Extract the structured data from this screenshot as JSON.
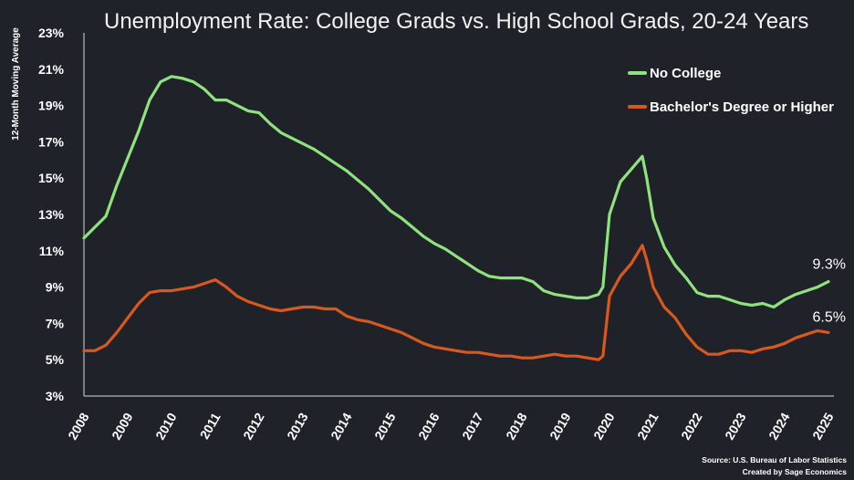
{
  "chart_data": {
    "type": "line",
    "title": "Unemployment Rate: College Grads vs. High School Grads, 20-24 Years",
    "ylabel": "12-Month Moving Average",
    "xlabel": "",
    "ylim": [
      3,
      23
    ],
    "xlim": [
      2008,
      2025
    ],
    "y_ticks": [
      "3%",
      "5%",
      "7%",
      "9%",
      "11%",
      "13%",
      "15%",
      "17%",
      "19%",
      "21%",
      "23%"
    ],
    "x_ticks": [
      "2008",
      "2009",
      "2010",
      "2011",
      "2012",
      "2013",
      "2014",
      "2015",
      "2016",
      "2017",
      "2018",
      "2019",
      "2020",
      "2021",
      "2022",
      "2023",
      "2024",
      "2025"
    ],
    "legend_position": "top-right",
    "series": [
      {
        "name": "No College",
        "color": "#8fe27d",
        "end_label": "9.3%",
        "x": [
          2008.0,
          2008.25,
          2008.5,
          2008.75,
          2009.0,
          2009.25,
          2009.5,
          2009.75,
          2010.0,
          2010.25,
          2010.5,
          2010.75,
          2011.0,
          2011.25,
          2011.5,
          2011.75,
          2012.0,
          2012.25,
          2012.5,
          2012.75,
          2013.0,
          2013.25,
          2013.5,
          2013.75,
          2014.0,
          2014.25,
          2014.5,
          2014.75,
          2015.0,
          2015.25,
          2015.5,
          2015.75,
          2016.0,
          2016.25,
          2016.5,
          2016.75,
          2017.0,
          2017.25,
          2017.5,
          2017.75,
          2018.0,
          2018.25,
          2018.5,
          2018.75,
          2019.0,
          2019.25,
          2019.5,
          2019.75,
          2019.85,
          2020.0,
          2020.25,
          2020.5,
          2020.75,
          2020.85,
          2021.0,
          2021.25,
          2021.5,
          2021.75,
          2022.0,
          2022.25,
          2022.5,
          2022.75,
          2023.0,
          2023.25,
          2023.5,
          2023.75,
          2024.0,
          2024.25,
          2024.5,
          2024.75,
          2025.0
        ],
        "values": [
          11.7,
          12.3,
          12.9,
          14.6,
          16.1,
          17.6,
          19.3,
          20.3,
          20.6,
          20.5,
          20.3,
          19.9,
          19.3,
          19.3,
          19.0,
          18.7,
          18.6,
          18.0,
          17.5,
          17.2,
          16.9,
          16.6,
          16.2,
          15.8,
          15.4,
          14.9,
          14.4,
          13.8,
          13.2,
          12.8,
          12.3,
          11.8,
          11.4,
          11.1,
          10.7,
          10.3,
          9.9,
          9.6,
          9.5,
          9.5,
          9.5,
          9.3,
          8.8,
          8.6,
          8.5,
          8.4,
          8.4,
          8.6,
          9.0,
          13.0,
          14.8,
          15.5,
          16.2,
          15.0,
          12.8,
          11.2,
          10.2,
          9.5,
          8.7,
          8.5,
          8.5,
          8.3,
          8.1,
          8.0,
          8.1,
          7.9,
          8.3,
          8.6,
          8.8,
          9.0,
          9.3
        ]
      },
      {
        "name": "Bachelor's Degree or Higher",
        "color": "#d9581e",
        "end_label": "6.5%",
        "x": [
          2008.0,
          2008.25,
          2008.5,
          2008.75,
          2009.0,
          2009.25,
          2009.5,
          2009.75,
          2010.0,
          2010.25,
          2010.5,
          2010.75,
          2011.0,
          2011.25,
          2011.5,
          2011.75,
          2012.0,
          2012.25,
          2012.5,
          2012.75,
          2013.0,
          2013.25,
          2013.5,
          2013.75,
          2014.0,
          2014.25,
          2014.5,
          2014.75,
          2015.0,
          2015.25,
          2015.5,
          2015.75,
          2016.0,
          2016.25,
          2016.5,
          2016.75,
          2017.0,
          2017.25,
          2017.5,
          2017.75,
          2018.0,
          2018.25,
          2018.5,
          2018.75,
          2019.0,
          2019.25,
          2019.5,
          2019.75,
          2019.85,
          2020.0,
          2020.25,
          2020.5,
          2020.75,
          2020.85,
          2021.0,
          2021.25,
          2021.5,
          2021.75,
          2022.0,
          2022.25,
          2022.5,
          2022.75,
          2023.0,
          2023.25,
          2023.5,
          2023.75,
          2024.0,
          2024.25,
          2024.5,
          2024.75,
          2025.0
        ],
        "values": [
          5.5,
          5.5,
          5.8,
          6.5,
          7.3,
          8.1,
          8.7,
          8.8,
          8.8,
          8.9,
          9.0,
          9.2,
          9.4,
          9.0,
          8.5,
          8.2,
          8.0,
          7.8,
          7.7,
          7.8,
          7.9,
          7.9,
          7.8,
          7.8,
          7.4,
          7.2,
          7.1,
          6.9,
          6.7,
          6.5,
          6.2,
          5.9,
          5.7,
          5.6,
          5.5,
          5.4,
          5.4,
          5.3,
          5.2,
          5.2,
          5.1,
          5.1,
          5.2,
          5.3,
          5.2,
          5.2,
          5.1,
          5.0,
          5.2,
          8.5,
          9.6,
          10.3,
          11.3,
          10.5,
          9.0,
          7.9,
          7.3,
          6.4,
          5.7,
          5.3,
          5.3,
          5.5,
          5.5,
          5.4,
          5.6,
          5.7,
          5.9,
          6.2,
          6.4,
          6.6,
          6.5
        ]
      }
    ],
    "source": "Source: U.S. Bureau of Labor Statistics",
    "credit": "Created by Sage Economics"
  }
}
